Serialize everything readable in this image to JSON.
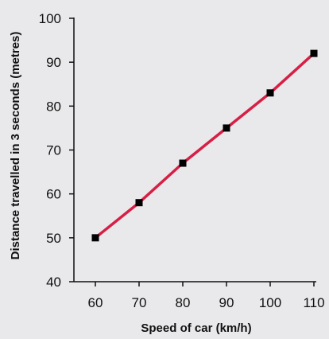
{
  "chart_data": {
    "type": "line",
    "title": "",
    "xlabel": "Speed of car (km/h)",
    "ylabel": "Distance travelled in 3 seconds (metres)",
    "x": [
      60,
      70,
      80,
      90,
      100,
      110
    ],
    "y": [
      50,
      58,
      67,
      75,
      83,
      92
    ],
    "xlim": [
      55,
      110
    ],
    "ylim": [
      40,
      100
    ],
    "xticks": [
      60,
      70,
      80,
      90,
      100,
      110
    ],
    "yticks": [
      40,
      50,
      60,
      70,
      80,
      90,
      100
    ],
    "grid": false,
    "legend": "none",
    "colors": {
      "line": "#d71f45",
      "marker": "#000000",
      "axis": "#111111",
      "background": "#e9e9ec"
    }
  }
}
